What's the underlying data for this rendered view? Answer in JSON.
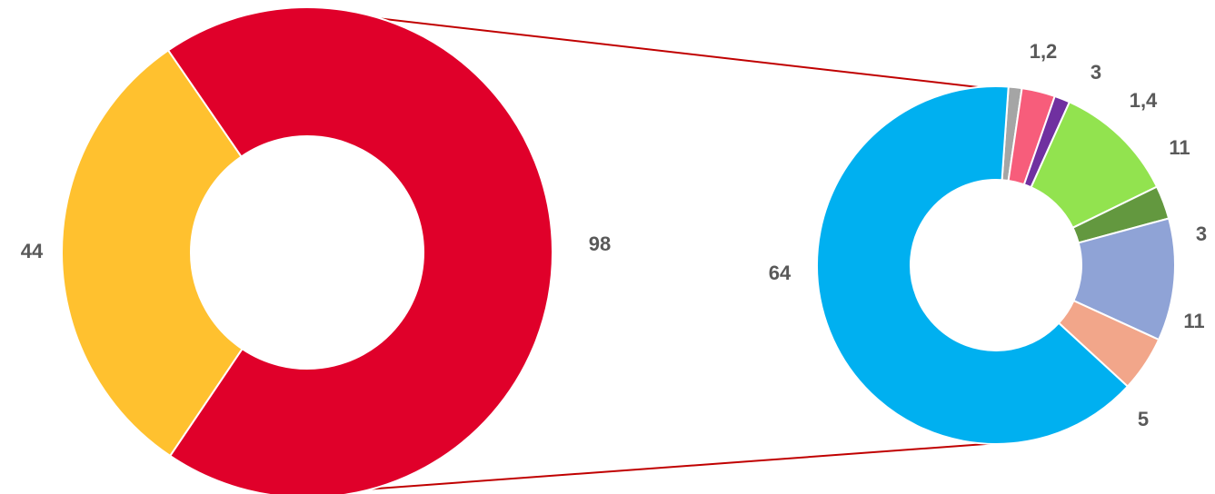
{
  "chart_data": [
    {
      "type": "donut",
      "title": "",
      "slices": [
        {
          "label": "98",
          "value": 98,
          "color": "#E0002A"
        },
        {
          "label": "44",
          "value": 44,
          "color": "#FFC12F"
        }
      ]
    },
    {
      "type": "donut",
      "title": "",
      "slices": [
        {
          "label": "1,2",
          "value": 1.2,
          "color": "#A5A5A5"
        },
        {
          "label": "3",
          "value": 3,
          "color": "#F75D7B"
        },
        {
          "label": "1,4",
          "value": 1.4,
          "color": "#7030A0"
        },
        {
          "label": "11",
          "value": 11,
          "color": "#92E34F"
        },
        {
          "label": "3",
          "value": 3,
          "color": "#63983F"
        },
        {
          "label": "11",
          "value": 11,
          "color": "#8FA3D6"
        },
        {
          "label": "5",
          "value": 5,
          "color": "#F2A68A"
        },
        {
          "label": "64",
          "value": 64,
          "color": "#00B0F0"
        }
      ]
    }
  ],
  "connector_color": "#C00000"
}
